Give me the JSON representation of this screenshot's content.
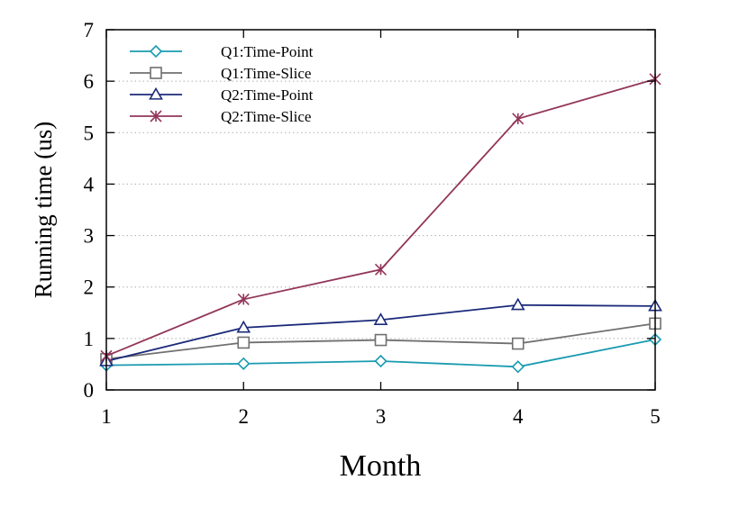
{
  "chart_data": {
    "type": "line",
    "xlabel": "Month",
    "ylabel": "Running time (us)",
    "x": [
      1,
      2,
      3,
      4,
      5
    ],
    "xlim": [
      1,
      5
    ],
    "ylim": [
      0,
      7
    ],
    "xticks": [
      1,
      2,
      3,
      4,
      5
    ],
    "yticks": [
      0,
      1,
      2,
      3,
      4,
      5,
      6,
      7
    ],
    "grid": "horizontal dotted",
    "legend_position": "top-left",
    "series": [
      {
        "name": "Q1:Time-Point",
        "color": "#1a9bb0",
        "marker": "diamond",
        "values": [
          0.48,
          0.51,
          0.56,
          0.45,
          0.98
        ]
      },
      {
        "name": "Q1:Time-Slice",
        "color": "#707070",
        "marker": "square",
        "values": [
          0.6,
          0.92,
          0.97,
          0.9,
          1.29
        ]
      },
      {
        "name": "Q2:Time-Point",
        "color": "#1b2a7a",
        "marker": "triangle",
        "values": [
          0.56,
          1.21,
          1.36,
          1.65,
          1.63
        ]
      },
      {
        "name": "Q2:Time-Slice",
        "color": "#93365a",
        "marker": "star",
        "values": [
          0.66,
          1.76,
          2.34,
          5.27,
          6.04
        ]
      }
    ]
  }
}
